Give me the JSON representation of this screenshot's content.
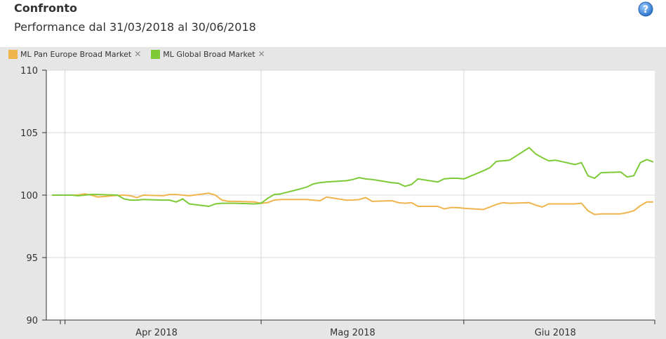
{
  "header": {
    "title": "Confronto",
    "subtitle": "Performance dal 31/03/2018 al 30/06/2018",
    "help_icon": "question-mark-icon"
  },
  "colors": {
    "pan_europe": "#F0B44C",
    "global": "#7DCA36",
    "plot_background": "#FFFFFF",
    "frame_background": "#E6E6E6",
    "grid": "#D8D8D8"
  },
  "legend": {
    "items": [
      {
        "label": "ML Pan Europe Broad Market",
        "color": "#F0B44C",
        "remove": "✕"
      },
      {
        "label": "ML Global Broad Market",
        "color": "#7DCA36",
        "remove": "✕"
      }
    ]
  },
  "chart_data": {
    "type": "line",
    "title": "",
    "xlabel": "",
    "ylabel": "",
    "ylim": [
      90,
      110
    ],
    "yticks": [
      110,
      105,
      100,
      95,
      90
    ],
    "xticks": [
      {
        "label": "Apr 2018",
        "date": "2018-04-15"
      },
      {
        "label": "Mag 2018",
        "date": "2018-05-15"
      },
      {
        "label": "Giu 2018",
        "date": "2018-06-15"
      }
    ],
    "xgrid_dates": [
      "2018-04-01",
      "2018-05-01",
      "2018-06-01"
    ],
    "x_range": [
      "2018-03-30",
      "2018-06-30"
    ],
    "legend_position": "top-left",
    "grid": true,
    "series": [
      {
        "name": "ML Pan Europe Broad Market",
        "color": "#F0B44C",
        "points": [
          [
            "2018-03-30",
            100.0
          ],
          [
            "2018-04-02",
            100.0
          ],
          [
            "2018-04-03",
            100.0
          ],
          [
            "2018-04-04",
            100.1
          ],
          [
            "2018-04-05",
            100.0
          ],
          [
            "2018-04-06",
            99.85
          ],
          [
            "2018-04-09",
            99.98
          ],
          [
            "2018-04-10",
            100.0
          ],
          [
            "2018-04-11",
            99.95
          ],
          [
            "2018-04-12",
            99.8
          ],
          [
            "2018-04-13",
            100.0
          ],
          [
            "2018-04-16",
            99.95
          ],
          [
            "2018-04-17",
            100.05
          ],
          [
            "2018-04-18",
            100.05
          ],
          [
            "2018-04-19",
            100.0
          ],
          [
            "2018-04-20",
            99.95
          ],
          [
            "2018-04-23",
            100.15
          ],
          [
            "2018-04-24",
            100.0
          ],
          [
            "2018-04-25",
            99.6
          ],
          [
            "2018-04-26",
            99.5
          ],
          [
            "2018-04-27",
            99.5
          ],
          [
            "2018-04-30",
            99.45
          ],
          [
            "2018-05-01",
            99.35
          ],
          [
            "2018-05-02",
            99.4
          ],
          [
            "2018-05-03",
            99.6
          ],
          [
            "2018-05-04",
            99.65
          ],
          [
            "2018-05-07",
            99.65
          ],
          [
            "2018-05-08",
            99.65
          ],
          [
            "2018-05-09",
            99.6
          ],
          [
            "2018-05-10",
            99.55
          ],
          [
            "2018-05-11",
            99.85
          ],
          [
            "2018-05-14",
            99.6
          ],
          [
            "2018-05-15",
            99.6
          ],
          [
            "2018-05-16",
            99.65
          ],
          [
            "2018-05-17",
            99.8
          ],
          [
            "2018-05-18",
            99.5
          ],
          [
            "2018-05-21",
            99.55
          ],
          [
            "2018-05-22",
            99.4
          ],
          [
            "2018-05-23",
            99.35
          ],
          [
            "2018-05-24",
            99.4
          ],
          [
            "2018-05-25",
            99.1
          ],
          [
            "2018-05-28",
            99.1
          ],
          [
            "2018-05-29",
            98.9
          ],
          [
            "2018-05-30",
            99.0
          ],
          [
            "2018-05-31",
            99.0
          ],
          [
            "2018-06-01",
            98.95
          ],
          [
            "2018-06-04",
            98.85
          ],
          [
            "2018-06-05",
            99.05
          ],
          [
            "2018-06-06",
            99.25
          ],
          [
            "2018-06-07",
            99.4
          ],
          [
            "2018-06-08",
            99.35
          ],
          [
            "2018-06-11",
            99.4
          ],
          [
            "2018-06-12",
            99.2
          ],
          [
            "2018-06-13",
            99.05
          ],
          [
            "2018-06-14",
            99.3
          ],
          [
            "2018-06-15",
            99.3
          ],
          [
            "2018-06-18",
            99.3
          ],
          [
            "2018-06-19",
            99.35
          ],
          [
            "2018-06-20",
            98.75
          ],
          [
            "2018-06-21",
            98.45
          ],
          [
            "2018-06-22",
            98.5
          ],
          [
            "2018-06-25",
            98.5
          ],
          [
            "2018-06-26",
            98.6
          ],
          [
            "2018-06-27",
            98.75
          ],
          [
            "2018-06-28",
            99.15
          ],
          [
            "2018-06-29",
            99.45
          ],
          [
            "2018-06-30",
            99.45
          ]
        ]
      },
      {
        "name": "ML Global Broad Market",
        "color": "#7DCA36",
        "points": [
          [
            "2018-03-30",
            100.0
          ],
          [
            "2018-04-02",
            100.0
          ],
          [
            "2018-04-03",
            99.95
          ],
          [
            "2018-04-04",
            100.0
          ],
          [
            "2018-04-05",
            100.05
          ],
          [
            "2018-04-06",
            100.05
          ],
          [
            "2018-04-09",
            100.0
          ],
          [
            "2018-04-10",
            99.7
          ],
          [
            "2018-04-11",
            99.6
          ],
          [
            "2018-04-12",
            99.6
          ],
          [
            "2018-04-13",
            99.65
          ],
          [
            "2018-04-16",
            99.6
          ],
          [
            "2018-04-17",
            99.6
          ],
          [
            "2018-04-18",
            99.45
          ],
          [
            "2018-04-19",
            99.7
          ],
          [
            "2018-04-20",
            99.3
          ],
          [
            "2018-04-23",
            99.1
          ],
          [
            "2018-04-24",
            99.3
          ],
          [
            "2018-04-25",
            99.35
          ],
          [
            "2018-04-26",
            99.35
          ],
          [
            "2018-04-27",
            99.35
          ],
          [
            "2018-04-30",
            99.3
          ],
          [
            "2018-05-01",
            99.35
          ],
          [
            "2018-05-02",
            99.75
          ],
          [
            "2018-05-03",
            100.05
          ],
          [
            "2018-05-04",
            100.1
          ],
          [
            "2018-05-07",
            100.5
          ],
          [
            "2018-05-08",
            100.65
          ],
          [
            "2018-05-09",
            100.9
          ],
          [
            "2018-05-10",
            101.0
          ],
          [
            "2018-05-11",
            101.05
          ],
          [
            "2018-05-14",
            101.15
          ],
          [
            "2018-05-15",
            101.25
          ],
          [
            "2018-05-16",
            101.4
          ],
          [
            "2018-05-17",
            101.3
          ],
          [
            "2018-05-18",
            101.25
          ],
          [
            "2018-05-21",
            101.0
          ],
          [
            "2018-05-22",
            100.95
          ],
          [
            "2018-05-23",
            100.7
          ],
          [
            "2018-05-24",
            100.85
          ],
          [
            "2018-05-25",
            101.3
          ],
          [
            "2018-05-28",
            101.05
          ],
          [
            "2018-05-29",
            101.3
          ],
          [
            "2018-05-30",
            101.35
          ],
          [
            "2018-05-31",
            101.35
          ],
          [
            "2018-06-01",
            101.3
          ],
          [
            "2018-06-04",
            101.95
          ],
          [
            "2018-06-05",
            102.2
          ],
          [
            "2018-06-06",
            102.7
          ],
          [
            "2018-06-07",
            102.75
          ],
          [
            "2018-06-08",
            102.8
          ],
          [
            "2018-06-11",
            103.8
          ],
          [
            "2018-06-12",
            103.3
          ],
          [
            "2018-06-13",
            103.0
          ],
          [
            "2018-06-14",
            102.75
          ],
          [
            "2018-06-15",
            102.8
          ],
          [
            "2018-06-18",
            102.45
          ],
          [
            "2018-06-19",
            102.6
          ],
          [
            "2018-06-20",
            101.55
          ],
          [
            "2018-06-21",
            101.35
          ],
          [
            "2018-06-22",
            101.8
          ],
          [
            "2018-06-25",
            101.85
          ],
          [
            "2018-06-26",
            101.45
          ],
          [
            "2018-06-27",
            101.55
          ],
          [
            "2018-06-28",
            102.6
          ],
          [
            "2018-06-29",
            102.85
          ],
          [
            "2018-06-30",
            102.65
          ]
        ]
      }
    ]
  }
}
